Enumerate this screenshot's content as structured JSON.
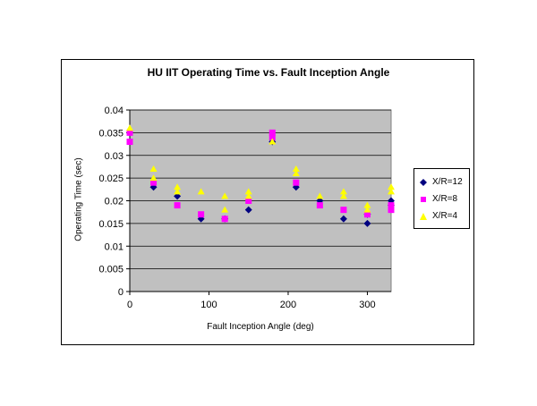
{
  "chart_data": {
    "type": "scatter",
    "title": "HU IIT Operating Time vs. Fault Inception Angle",
    "xlabel": "Fault Inception Angle (deg)",
    "ylabel": "Operating Time (sec)",
    "xlim": [
      0,
      330
    ],
    "ylim": [
      0,
      0.04
    ],
    "x_ticks": [
      "0",
      "100",
      "200",
      "300"
    ],
    "x_tick_values": [
      0,
      100,
      200,
      300
    ],
    "y_ticks": [
      "0",
      "0.005",
      "0.01",
      "0.015",
      "0.02",
      "0.025",
      "0.03",
      "0.035",
      "0.04"
    ],
    "y_tick_values": [
      0,
      0.005,
      0.01,
      0.015,
      0.02,
      0.025,
      0.03,
      0.035,
      0.04
    ],
    "grid": true,
    "legend_position": "right",
    "plot_background": "#c0c0c0",
    "series": [
      {
        "name": "X/R=12",
        "marker": "diamond",
        "color": "#000080",
        "points": [
          [
            0,
            0.035
          ],
          [
            30,
            0.023
          ],
          [
            60,
            0.021
          ],
          [
            90,
            0.016
          ],
          [
            120,
            0.016
          ],
          [
            150,
            0.018
          ],
          [
            180,
            0.033
          ],
          [
            210,
            0.023
          ],
          [
            240,
            0.02
          ],
          [
            270,
            0.016
          ],
          [
            300,
            0.017
          ],
          [
            300,
            0.015
          ],
          [
            330,
            0.02
          ],
          [
            330,
            0.019
          ]
        ]
      },
      {
        "name": "X/R=8",
        "marker": "square",
        "color": "#ff00ff",
        "points": [
          [
            0,
            0.035
          ],
          [
            0,
            0.033
          ],
          [
            30,
            0.024
          ],
          [
            60,
            0.019
          ],
          [
            90,
            0.017
          ],
          [
            120,
            0.016
          ],
          [
            150,
            0.02
          ],
          [
            180,
            0.035
          ],
          [
            180,
            0.034
          ],
          [
            210,
            0.024
          ],
          [
            240,
            0.019
          ],
          [
            270,
            0.018
          ],
          [
            300,
            0.017
          ],
          [
            330,
            0.019
          ],
          [
            330,
            0.018
          ]
        ]
      },
      {
        "name": "X/R=4",
        "marker": "triangle",
        "color": "#ffff00",
        "points": [
          [
            0,
            0.036
          ],
          [
            30,
            0.027
          ],
          [
            30,
            0.025
          ],
          [
            60,
            0.023
          ],
          [
            60,
            0.022
          ],
          [
            90,
            0.022
          ],
          [
            120,
            0.021
          ],
          [
            120,
            0.018
          ],
          [
            150,
            0.022
          ],
          [
            150,
            0.021
          ],
          [
            180,
            0.033
          ],
          [
            210,
            0.027
          ],
          [
            210,
            0.026
          ],
          [
            240,
            0.021
          ],
          [
            270,
            0.022
          ],
          [
            270,
            0.021
          ],
          [
            300,
            0.019
          ],
          [
            300,
            0.018
          ],
          [
            330,
            0.023
          ],
          [
            330,
            0.022
          ]
        ]
      }
    ]
  }
}
